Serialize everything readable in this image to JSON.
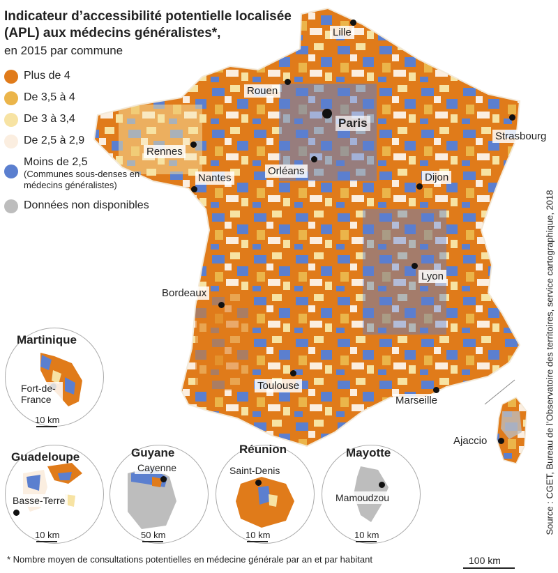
{
  "title": "Indicateur d’accessibilité potentielle localisée (APL) aux médecins généralistes*,",
  "subtitle": "en 2015 par commune",
  "colors": {
    "plus4": "#e07b1a",
    "c35_4": "#ebb54a",
    "c3_34": "#f7e3a3",
    "c25_29": "#fbeee0",
    "moins25": "#5b7fcf",
    "nd": "#bdbdbd"
  },
  "legend": [
    {
      "label": "Plus de 4",
      "color": "#e07b1a"
    },
    {
      "label": "De 3,5 à 4",
      "color": "#ebb54a"
    },
    {
      "label": "De 3 à 3,4",
      "color": "#f7e3a3"
    },
    {
      "label": "De 2,5 à 2,9",
      "color": "#fbeee0"
    },
    {
      "label": "Moins de 2,5",
      "sublabel": "(Communes sous-denses en médecins généralistes)",
      "color": "#5b7fcf"
    },
    {
      "label": "Données non disponibles",
      "color": "#bdbdbd"
    }
  ],
  "cities": {
    "lille": "Lille",
    "rouen": "Rouen",
    "paris": "Paris",
    "strasbourg": "Strasbourg",
    "rennes": "Rennes",
    "orleans": "Orléans",
    "dijon": "Dijon",
    "nantes": "Nantes",
    "lyon": "Lyon",
    "bordeaux": "Bordeaux",
    "toulouse": "Toulouse",
    "marseille": "Marseille",
    "ajaccio": "Ajaccio"
  },
  "insets": {
    "martinique": {
      "title": "Martinique",
      "city": "Fort-de-France",
      "scale": "10 km"
    },
    "guadeloupe": {
      "title": "Guadeloupe",
      "city": "Basse-Terre",
      "scale": "10 km"
    },
    "guyane": {
      "title": "Guyane",
      "city": "Cayenne",
      "scale": "50 km"
    },
    "reunion": {
      "title": "Réunion",
      "city": "Saint-Denis",
      "scale": "10 km"
    },
    "mayotte": {
      "title": "Mayotte",
      "city": "Mamoudzou",
      "scale": "10 km"
    }
  },
  "footnote": "* Nombre moyen de consultations potentielles en médecine générale par an et par habitant",
  "scale_main": "100 km",
  "source": "Source : CGET, Bureau de l’Observatoire des territoires, service cartographique, 2018"
}
